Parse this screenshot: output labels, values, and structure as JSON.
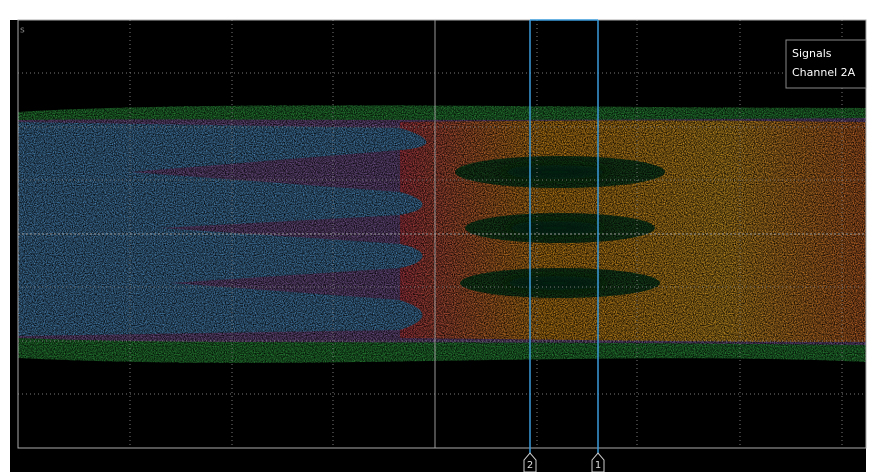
{
  "screen": {
    "axis_unit": "s",
    "legend": {
      "title": "Signals",
      "channel": "Channel 2A"
    },
    "markers": [
      "2",
      "1"
    ]
  }
}
